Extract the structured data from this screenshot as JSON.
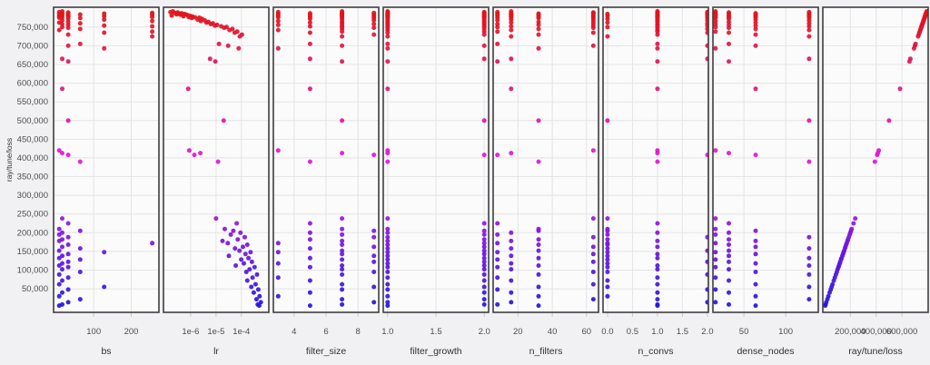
{
  "chart_data": {
    "type": "scatter",
    "title": "",
    "ylabel": "ray/tune/loss",
    "grid": true,
    "legend": false,
    "y_domain": [
      -13000,
      803000
    ],
    "y_ticks": [
      {
        "v": 750000,
        "label": "750,000"
      },
      {
        "v": 700000,
        "label": "700,000"
      },
      {
        "v": 650000,
        "label": "650,000"
      },
      {
        "v": 600000,
        "label": "600,000"
      },
      {
        "v": 550000,
        "label": "550,000"
      },
      {
        "v": 500000,
        "label": "500,000"
      },
      {
        "v": 450000,
        "label": "450,000"
      },
      {
        "v": 400000,
        "label": "400,000"
      },
      {
        "v": 350000,
        "label": "350,000"
      },
      {
        "v": 300000,
        "label": "300,000"
      },
      {
        "v": 250000,
        "label": "250,000"
      },
      {
        "v": 200000,
        "label": "200,000"
      },
      {
        "v": 150000,
        "label": "150,000"
      },
      {
        "v": 100000,
        "label": "100,000"
      },
      {
        "v": 50000,
        "label": "50,000"
      }
    ],
    "color_scale": {
      "low_hue": 244,
      "high_hue": 360,
      "saturation": "82%",
      "lightness": "48%",
      "low_color_hex": "#2a16df",
      "mid_color_hex": "#c11ba6",
      "high_color_hex": "#f01515"
    },
    "panels": [
      {
        "key": "bs",
        "label": "bs",
        "scale": "linear",
        "domain": [
          -7,
          274
        ],
        "ticks": [
          100,
          200
        ],
        "tick_labels": [
          "100",
          "200"
        ]
      },
      {
        "key": "lr",
        "label": "lr",
        "scale": "log",
        "domain": [
          8.5e-08,
          0.0012
        ],
        "ticks": [
          1e-06,
          1e-05,
          0.0001
        ],
        "tick_labels": [
          "1e-6",
          "1e-5",
          "1e-4"
        ]
      },
      {
        "key": "filter_size",
        "label": "filter_size",
        "scale": "linear",
        "domain": [
          2.7,
          9.3
        ],
        "ticks": [
          4,
          6,
          8
        ],
        "tick_labels": [
          "4",
          "6",
          "8"
        ]
      },
      {
        "key": "filter_growth",
        "label": "filter_growth",
        "scale": "linear",
        "domain": [
          0.955,
          2.045
        ],
        "ticks": [
          1.0,
          1.5,
          2.0
        ],
        "tick_labels": [
          "1.0",
          "1.5",
          "2.0"
        ]
      },
      {
        "key": "n_filters",
        "label": "n_filters",
        "scale": "linear",
        "domain": [
          5.5,
          67
        ],
        "ticks": [
          20,
          40,
          60
        ],
        "tick_labels": [
          "20",
          "40",
          "60"
        ]
      },
      {
        "key": "n_convs",
        "label": "n_convs",
        "scale": "linear",
        "domain": [
          -0.09,
          2.02
        ],
        "ticks": [
          0.0,
          0.5,
          1.0,
          1.5,
          2.0
        ],
        "tick_labels": [
          "0.0",
          "0.5",
          "1.0",
          "1.5",
          "2.0"
        ]
      },
      {
        "key": "dense_nodes",
        "label": "dense_nodes",
        "scale": "linear",
        "domain": [
          13,
          139
        ],
        "ticks": [
          50,
          100
        ],
        "tick_labels": [
          "50",
          "100"
        ]
      },
      {
        "key": "loss",
        "label": "ray/tune/loss",
        "scale": "linear",
        "domain": [
          -13000,
          803000
        ],
        "ticks": [
          200000,
          400000,
          600000
        ],
        "tick_labels": [
          "200,000",
          "400,000",
          "600,000"
        ]
      }
    ],
    "trial_fields": [
      "bs",
      "lr",
      "filter_size",
      "filter_growth",
      "n_filters",
      "n_convs",
      "dense_nodes",
      "loss"
    ],
    "trials": [
      [
        16,
        2e-07,
        7,
        1,
        16,
        1,
        16,
        792000
      ],
      [
        8,
        1.6e-07,
        3,
        2,
        8,
        2,
        128,
        790000
      ],
      [
        32,
        3.1e-07,
        7,
        1,
        64,
        1,
        32,
        789000
      ],
      [
        256,
        2.4e-07,
        9,
        2,
        64,
        2,
        16,
        788000
      ],
      [
        16,
        4.4e-07,
        5,
        1,
        16,
        1,
        64,
        787000
      ],
      [
        128,
        3.6e-07,
        7,
        2,
        32,
        1,
        128,
        786000
      ],
      [
        8,
        5.6e-07,
        3,
        1,
        8,
        0,
        32,
        785000
      ],
      [
        32,
        2.8e-07,
        7,
        2,
        16,
        1,
        16,
        784000
      ],
      [
        64,
        6.4e-07,
        9,
        1,
        64,
        2,
        64,
        783500
      ],
      [
        256,
        4e-07,
        7,
        1,
        32,
        1,
        128,
        783000
      ],
      [
        16,
        7.6e-07,
        5,
        2,
        16,
        2,
        16,
        782000
      ],
      [
        32,
        1.8e-07,
        3,
        1,
        8,
        1,
        32,
        781000
      ],
      [
        8,
        9.6e-07,
        7,
        2,
        64,
        0,
        64,
        780000
      ],
      [
        128,
        5.2e-07,
        9,
        1,
        16,
        1,
        128,
        779000
      ],
      [
        32,
        1.2e-06,
        7,
        2,
        32,
        2,
        16,
        778000
      ],
      [
        256,
        8.4e-07,
        5,
        1,
        64,
        1,
        32,
        777000
      ],
      [
        16,
        1.5e-06,
        3,
        2,
        16,
        1,
        64,
        776000
      ],
      [
        8,
        2.2e-06,
        7,
        1,
        8,
        2,
        128,
        775000
      ],
      [
        64,
        1.1e-06,
        9,
        2,
        32,
        1,
        16,
        774000
      ],
      [
        32,
        2.8e-06,
        5,
        1,
        64,
        0,
        32,
        772000
      ],
      [
        128,
        1.9e-06,
        7,
        2,
        16,
        1,
        64,
        770000
      ],
      [
        16,
        3.6e-06,
        9,
        1,
        8,
        2,
        128,
        768000
      ],
      [
        256,
        2.5e-06,
        3,
        2,
        64,
        1,
        16,
        766000
      ],
      [
        32,
        5e-06,
        7,
        1,
        32,
        1,
        32,
        764000
      ],
      [
        8,
        4.2e-06,
        5,
        2,
        16,
        0,
        64,
        762000
      ],
      [
        64,
        7.5e-06,
        7,
        1,
        64,
        2,
        128,
        760000
      ],
      [
        16,
        6.2e-06,
        9,
        2,
        8,
        1,
        16,
        758000
      ],
      [
        32,
        1.1e-05,
        3,
        1,
        32,
        1,
        32,
        756000
      ],
      [
        128,
        9e-06,
        7,
        2,
        64,
        2,
        64,
        754000
      ],
      [
        256,
        1.6e-05,
        5,
        1,
        16,
        1,
        128,
        752000
      ],
      [
        16,
        2.6e-05,
        7,
        2,
        8,
        0,
        16,
        750000
      ],
      [
        32,
        2.1e-05,
        9,
        1,
        64,
        1,
        32,
        748000
      ],
      [
        64,
        4.4e-05,
        7,
        2,
        32,
        2,
        64,
        745000
      ],
      [
        8,
        3.4e-05,
        3,
        1,
        16,
        1,
        128,
        742000
      ],
      [
        256,
        6.8e-05,
        7,
        2,
        8,
        1,
        16,
        738000
      ],
      [
        128,
        5.4e-05,
        5,
        1,
        64,
        2,
        32,
        735000
      ],
      [
        32,
        0.000105,
        9,
        2,
        32,
        1,
        64,
        730000
      ],
      [
        256,
        8.6e-05,
        7,
        1,
        16,
        0,
        128,
        725000
      ],
      [
        64,
        1.3e-05,
        5,
        1,
        8,
        1,
        32,
        705000
      ],
      [
        32,
        3e-05,
        7,
        2,
        64,
        2,
        64,
        700000
      ],
      [
        128,
        7.8e-05,
        3,
        1,
        32,
        1,
        16,
        693000
      ],
      [
        16,
        5.8e-06,
        5,
        2,
        16,
        2,
        128,
        665000
      ],
      [
        32,
        9.4e-06,
        7,
        1,
        8,
        1,
        32,
        658000
      ],
      [
        16,
        8e-07,
        5,
        1,
        16,
        1,
        64,
        585000
      ],
      [
        32,
        2e-05,
        7,
        2,
        32,
        0,
        128,
        500000
      ],
      [
        8,
        8.8e-07,
        3,
        1,
        64,
        1,
        16,
        420000
      ],
      [
        16,
        2.4e-06,
        7,
        1,
        16,
        1,
        32,
        413000
      ],
      [
        32,
        1.4e-06,
        9,
        2,
        8,
        2,
        64,
        408000
      ],
      [
        64,
        1.2e-05,
        5,
        1,
        32,
        1,
        128,
        390000
      ],
      [
        16,
        1e-05,
        7,
        1,
        64,
        0,
        16,
        238000
      ],
      [
        32,
        6.5e-05,
        5,
        2,
        8,
        1,
        32,
        225000
      ],
      [
        8,
        2.2e-05,
        7,
        1,
        32,
        0,
        16,
        210000
      ],
      [
        64,
        4.8e-05,
        9,
        2,
        32,
        0,
        64,
        205000
      ],
      [
        16,
        9.2e-05,
        5,
        1,
        16,
        1,
        32,
        200000
      ],
      [
        8,
        3.8e-05,
        7,
        2,
        8,
        0,
        16,
        195000
      ],
      [
        32,
        0.000135,
        9,
        1,
        64,
        2,
        128,
        188000
      ],
      [
        16,
        7.2e-05,
        5,
        2,
        32,
        0,
        32,
        182000
      ],
      [
        8,
        1.8e-05,
        7,
        1,
        16,
        1,
        64,
        178000
      ],
      [
        256,
        2.9e-05,
        3,
        2,
        8,
        0,
        16,
        172000
      ],
      [
        32,
        0.00017,
        7,
        1,
        32,
        0,
        32,
        168000
      ],
      [
        16,
        0.000115,
        9,
        2,
        64,
        1,
        64,
        162000
      ],
      [
        64,
        5.6e-05,
        5,
        1,
        16,
        0,
        128,
        158000
      ],
      [
        8,
        8.4e-05,
        7,
        2,
        32,
        2,
        32,
        152000
      ],
      [
        128,
        0.00023,
        3,
        1,
        8,
        0,
        16,
        148000
      ],
      [
        32,
        0.000145,
        7,
        2,
        64,
        1,
        64,
        143000
      ],
      [
        16,
        3.2e-05,
        9,
        1,
        16,
        0,
        32,
        138000
      ],
      [
        8,
        0.00019,
        5,
        2,
        32,
        1,
        128,
        132000
      ],
      [
        64,
        9.8e-05,
        7,
        1,
        8,
        0,
        16,
        128000
      ],
      [
        32,
        0.00026,
        9,
        2,
        64,
        2,
        32,
        122000
      ],
      [
        16,
        0.000125,
        3,
        1,
        16,
        0,
        64,
        118000
      ],
      [
        8,
        6e-05,
        7,
        2,
        32,
        1,
        128,
        112000
      ],
      [
        32,
        0.00033,
        5,
        1,
        8,
        0,
        16,
        108000
      ],
      [
        16,
        0.00021,
        7,
        2,
        16,
        1,
        32,
        102000
      ],
      [
        64,
        0.000155,
        9,
        1,
        64,
        0,
        64,
        95000
      ],
      [
        8,
        0.00041,
        7,
        2,
        32,
        2,
        128,
        88000
      ],
      [
        32,
        0.000275,
        3,
        1,
        8,
        1,
        16,
        80000
      ],
      [
        16,
        0.00017,
        5,
        2,
        16,
        0,
        32,
        72000
      ],
      [
        8,
        0.00036,
        7,
        1,
        64,
        1,
        64,
        62000
      ],
      [
        128,
        0.000245,
        9,
        2,
        32,
        0,
        128,
        55000
      ],
      [
        32,
        0.00046,
        7,
        1,
        8,
        2,
        16,
        48000
      ],
      [
        16,
        0.000305,
        5,
        2,
        16,
        1,
        32,
        40000
      ],
      [
        8,
        0.00052,
        3,
        1,
        32,
        0,
        64,
        30000
      ],
      [
        64,
        0.00039,
        7,
        2,
        64,
        1,
        128,
        22000
      ],
      [
        32,
        0.00058,
        9,
        1,
        16,
        2,
        16,
        14000
      ],
      [
        16,
        0.00044,
        7,
        2,
        8,
        1,
        32,
        8000
      ],
      [
        8,
        0.0005,
        5,
        1,
        32,
        1,
        64,
        5000
      ]
    ]
  }
}
